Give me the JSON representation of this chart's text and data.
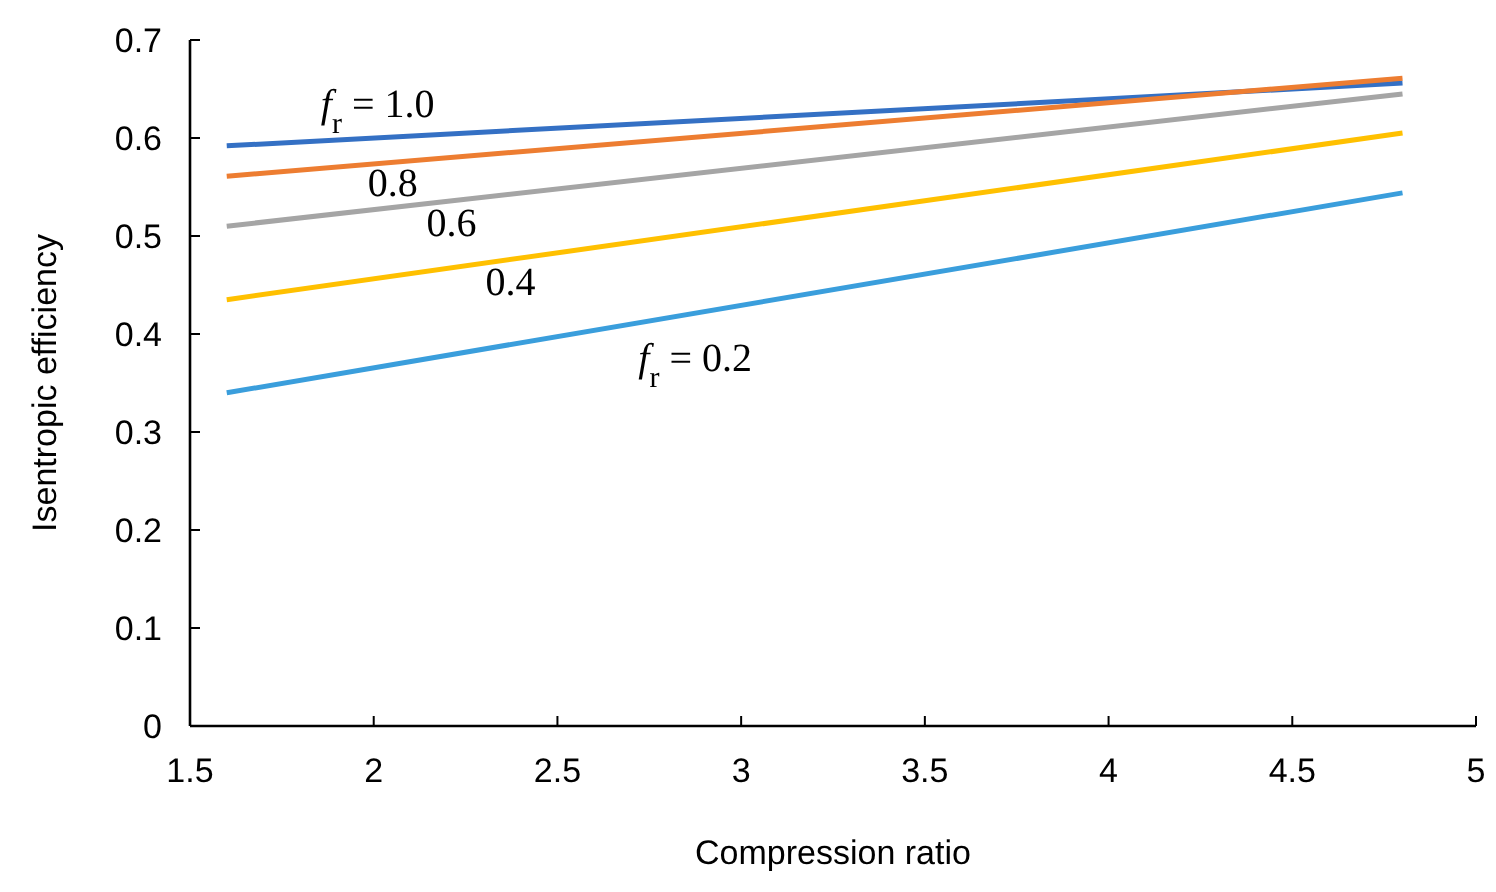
{
  "chart_data": {
    "type": "line",
    "xlabel": "Compression ratio",
    "ylabel": "Isentropic efficiency",
    "x": [
      1.6,
      4.8
    ],
    "xlim": [
      1.5,
      5
    ],
    "xticks": [
      1.5,
      2,
      2.5,
      3,
      3.5,
      4,
      4.5,
      5
    ],
    "ylim": [
      0,
      0.7
    ],
    "yticks": [
      0,
      0.1,
      0.2,
      0.3,
      0.4,
      0.5,
      0.6,
      0.7
    ],
    "grid": false,
    "marker": "none",
    "line_style": "solid",
    "series": [
      {
        "name": "f$_{r}$ = 1.0",
        "color": "#3470c4",
        "values": [
          0.592,
          0.656
        ]
      },
      {
        "name": "0.8",
        "color": "#ed7d31",
        "values": [
          0.561,
          0.661
        ]
      },
      {
        "name": "0.6",
        "color": "#a5a5a5",
        "values": [
          0.51,
          0.645
        ]
      },
      {
        "name": "0.4",
        "color": "#ffc000",
        "values": [
          0.435,
          0.605
        ]
      },
      {
        "name": "f$_{r}$ = 0.2",
        "color": "#3a9edc",
        "values": [
          0.34,
          0.544
        ]
      }
    ]
  }
}
